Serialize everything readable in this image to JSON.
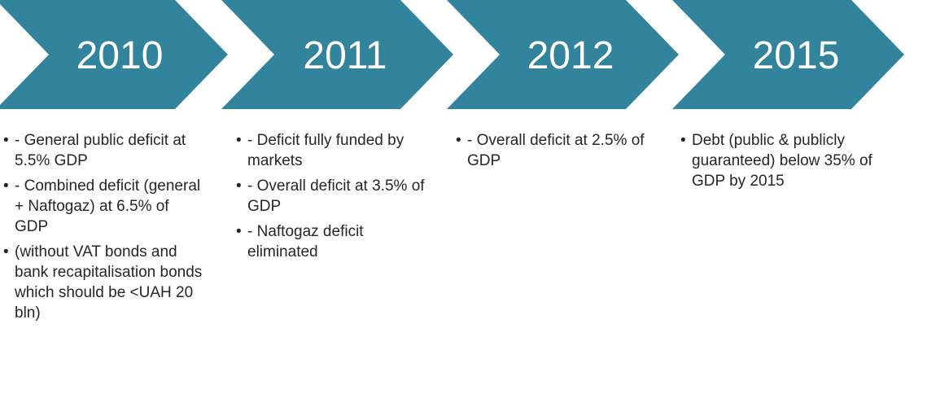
{
  "timeline": [
    {
      "year": "2010",
      "items": [
        "- General public deficit at 5.5% GDP",
        "- Combined deficit (general + Naftogaz) at 6.5% of GDP",
        "(without VAT bonds and bank recapitalisation bonds which should be <UAH 20 bln)"
      ]
    },
    {
      "year": "2011",
      "items": [
        "- Deficit fully funded by markets",
        "- Overall deficit at 3.5% of GDP",
        "- Naftogaz deficit eliminated"
      ]
    },
    {
      "year": "2012",
      "items": [
        "- Overall deficit at 2.5% of GDP"
      ]
    },
    {
      "year": "2015",
      "items": [
        "Debt (public & publicly guaranteed) below 35% of GDP by 2015"
      ]
    }
  ]
}
